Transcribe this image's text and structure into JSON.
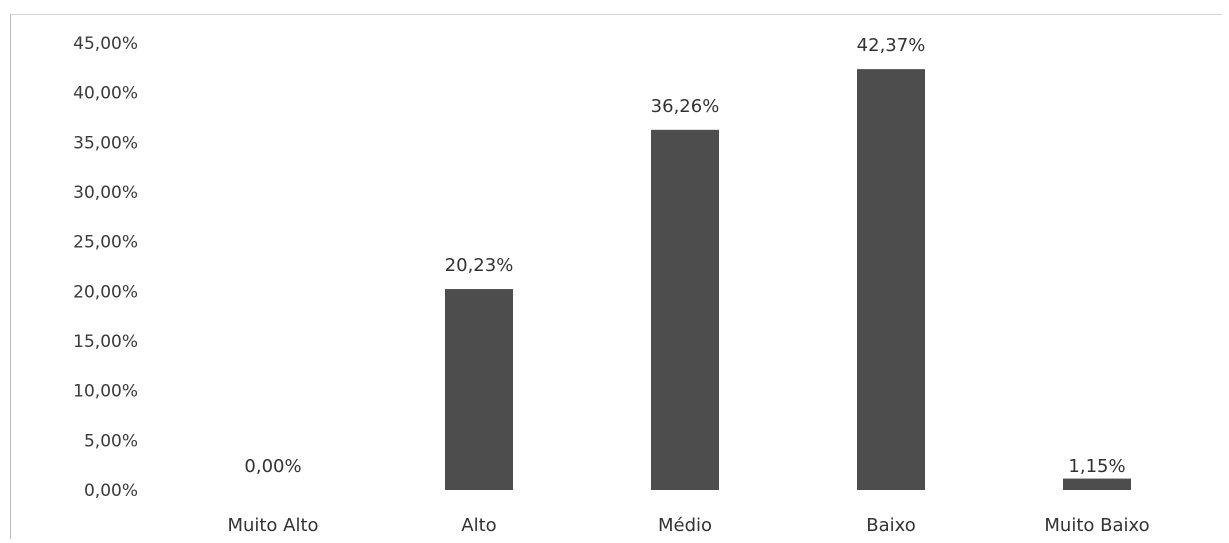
{
  "chart_data": {
    "type": "bar",
    "title": "",
    "xlabel": "",
    "ylabel": "",
    "categories": [
      "Muito Alto",
      "Alto",
      "Médio",
      "Baixo",
      "Muito Baixo"
    ],
    "values": [
      0.0,
      20.23,
      36.26,
      42.37,
      1.15
    ],
    "value_labels": [
      "0,00%",
      "20,23%",
      "36,26%",
      "42,37%",
      "1,15%"
    ],
    "ylim": [
      0,
      45
    ],
    "y_ticks": [
      0,
      5,
      10,
      15,
      20,
      25,
      30,
      35,
      40,
      45
    ],
    "y_tick_labels": [
      "0,00%",
      "5,00%",
      "10,00%",
      "15,00%",
      "20,00%",
      "25,00%",
      "30,00%",
      "35,00%",
      "40,00%",
      "45,00%"
    ],
    "grid": false,
    "legend": "none",
    "bar_color": "#4d4d4d"
  }
}
